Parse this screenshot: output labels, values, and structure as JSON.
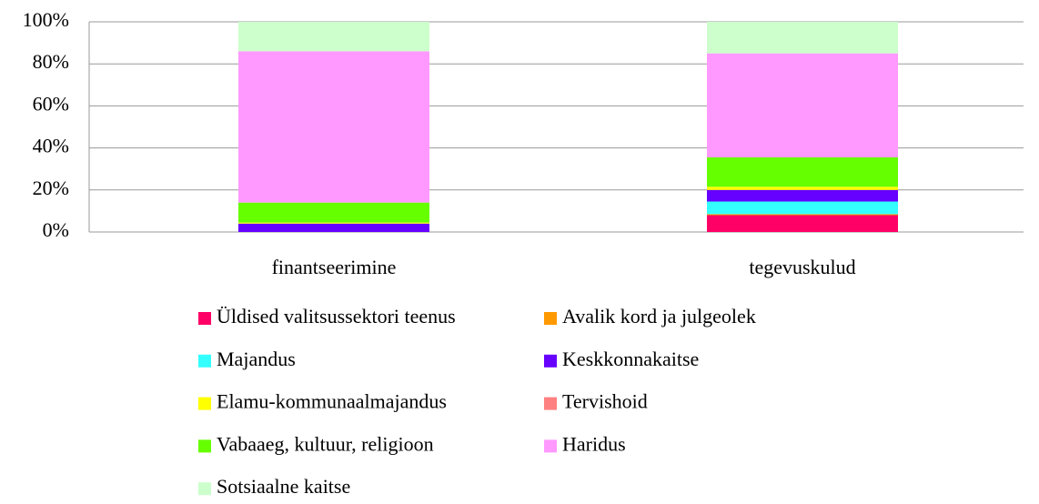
{
  "chart_data": {
    "type": "stacked_bar",
    "categories": [
      "finantseerimine",
      "tegevuskulud"
    ],
    "series": [
      {
        "name": "Üldised valitsussektori teenus",
        "color": "#ff0066",
        "values": [
          0,
          8
        ]
      },
      {
        "name": "Avalik kord ja julgeolek",
        "color": "#ff9900",
        "values": [
          0,
          0.5
        ]
      },
      {
        "name": "Majandus",
        "color": "#33ffff",
        "values": [
          0,
          6
        ]
      },
      {
        "name": "Keskkonnakaitse",
        "color": "#6600ff",
        "values": [
          4,
          5.5
        ]
      },
      {
        "name": "Elamu-kommunaalmajandus",
        "color": "#ffff00",
        "values": [
          0.5,
          1.5
        ]
      },
      {
        "name": "Tervishoid",
        "color": "#ff8080",
        "values": [
          0,
          0
        ]
      },
      {
        "name": "Vabaaeg, kultuur, religioon",
        "color": "#66ff00",
        "values": [
          9.5,
          14
        ]
      },
      {
        "name": "Haridus",
        "color": "#ff99ff",
        "values": [
          72,
          49.5
        ]
      },
      {
        "name": "Sotsiaalne kaitse",
        "color": "#ccffcc",
        "values": [
          14,
          15
        ]
      }
    ],
    "ylim": [
      0,
      100
    ],
    "yticks": [
      {
        "value": 0,
        "label": "0%"
      },
      {
        "value": 20,
        "label": "20%"
      },
      {
        "value": 40,
        "label": "40%"
      },
      {
        "value": 60,
        "label": "60%"
      },
      {
        "value": 80,
        "label": "80%"
      },
      {
        "value": 100,
        "label": "100%"
      }
    ],
    "grid": true,
    "legend": "bottom"
  }
}
